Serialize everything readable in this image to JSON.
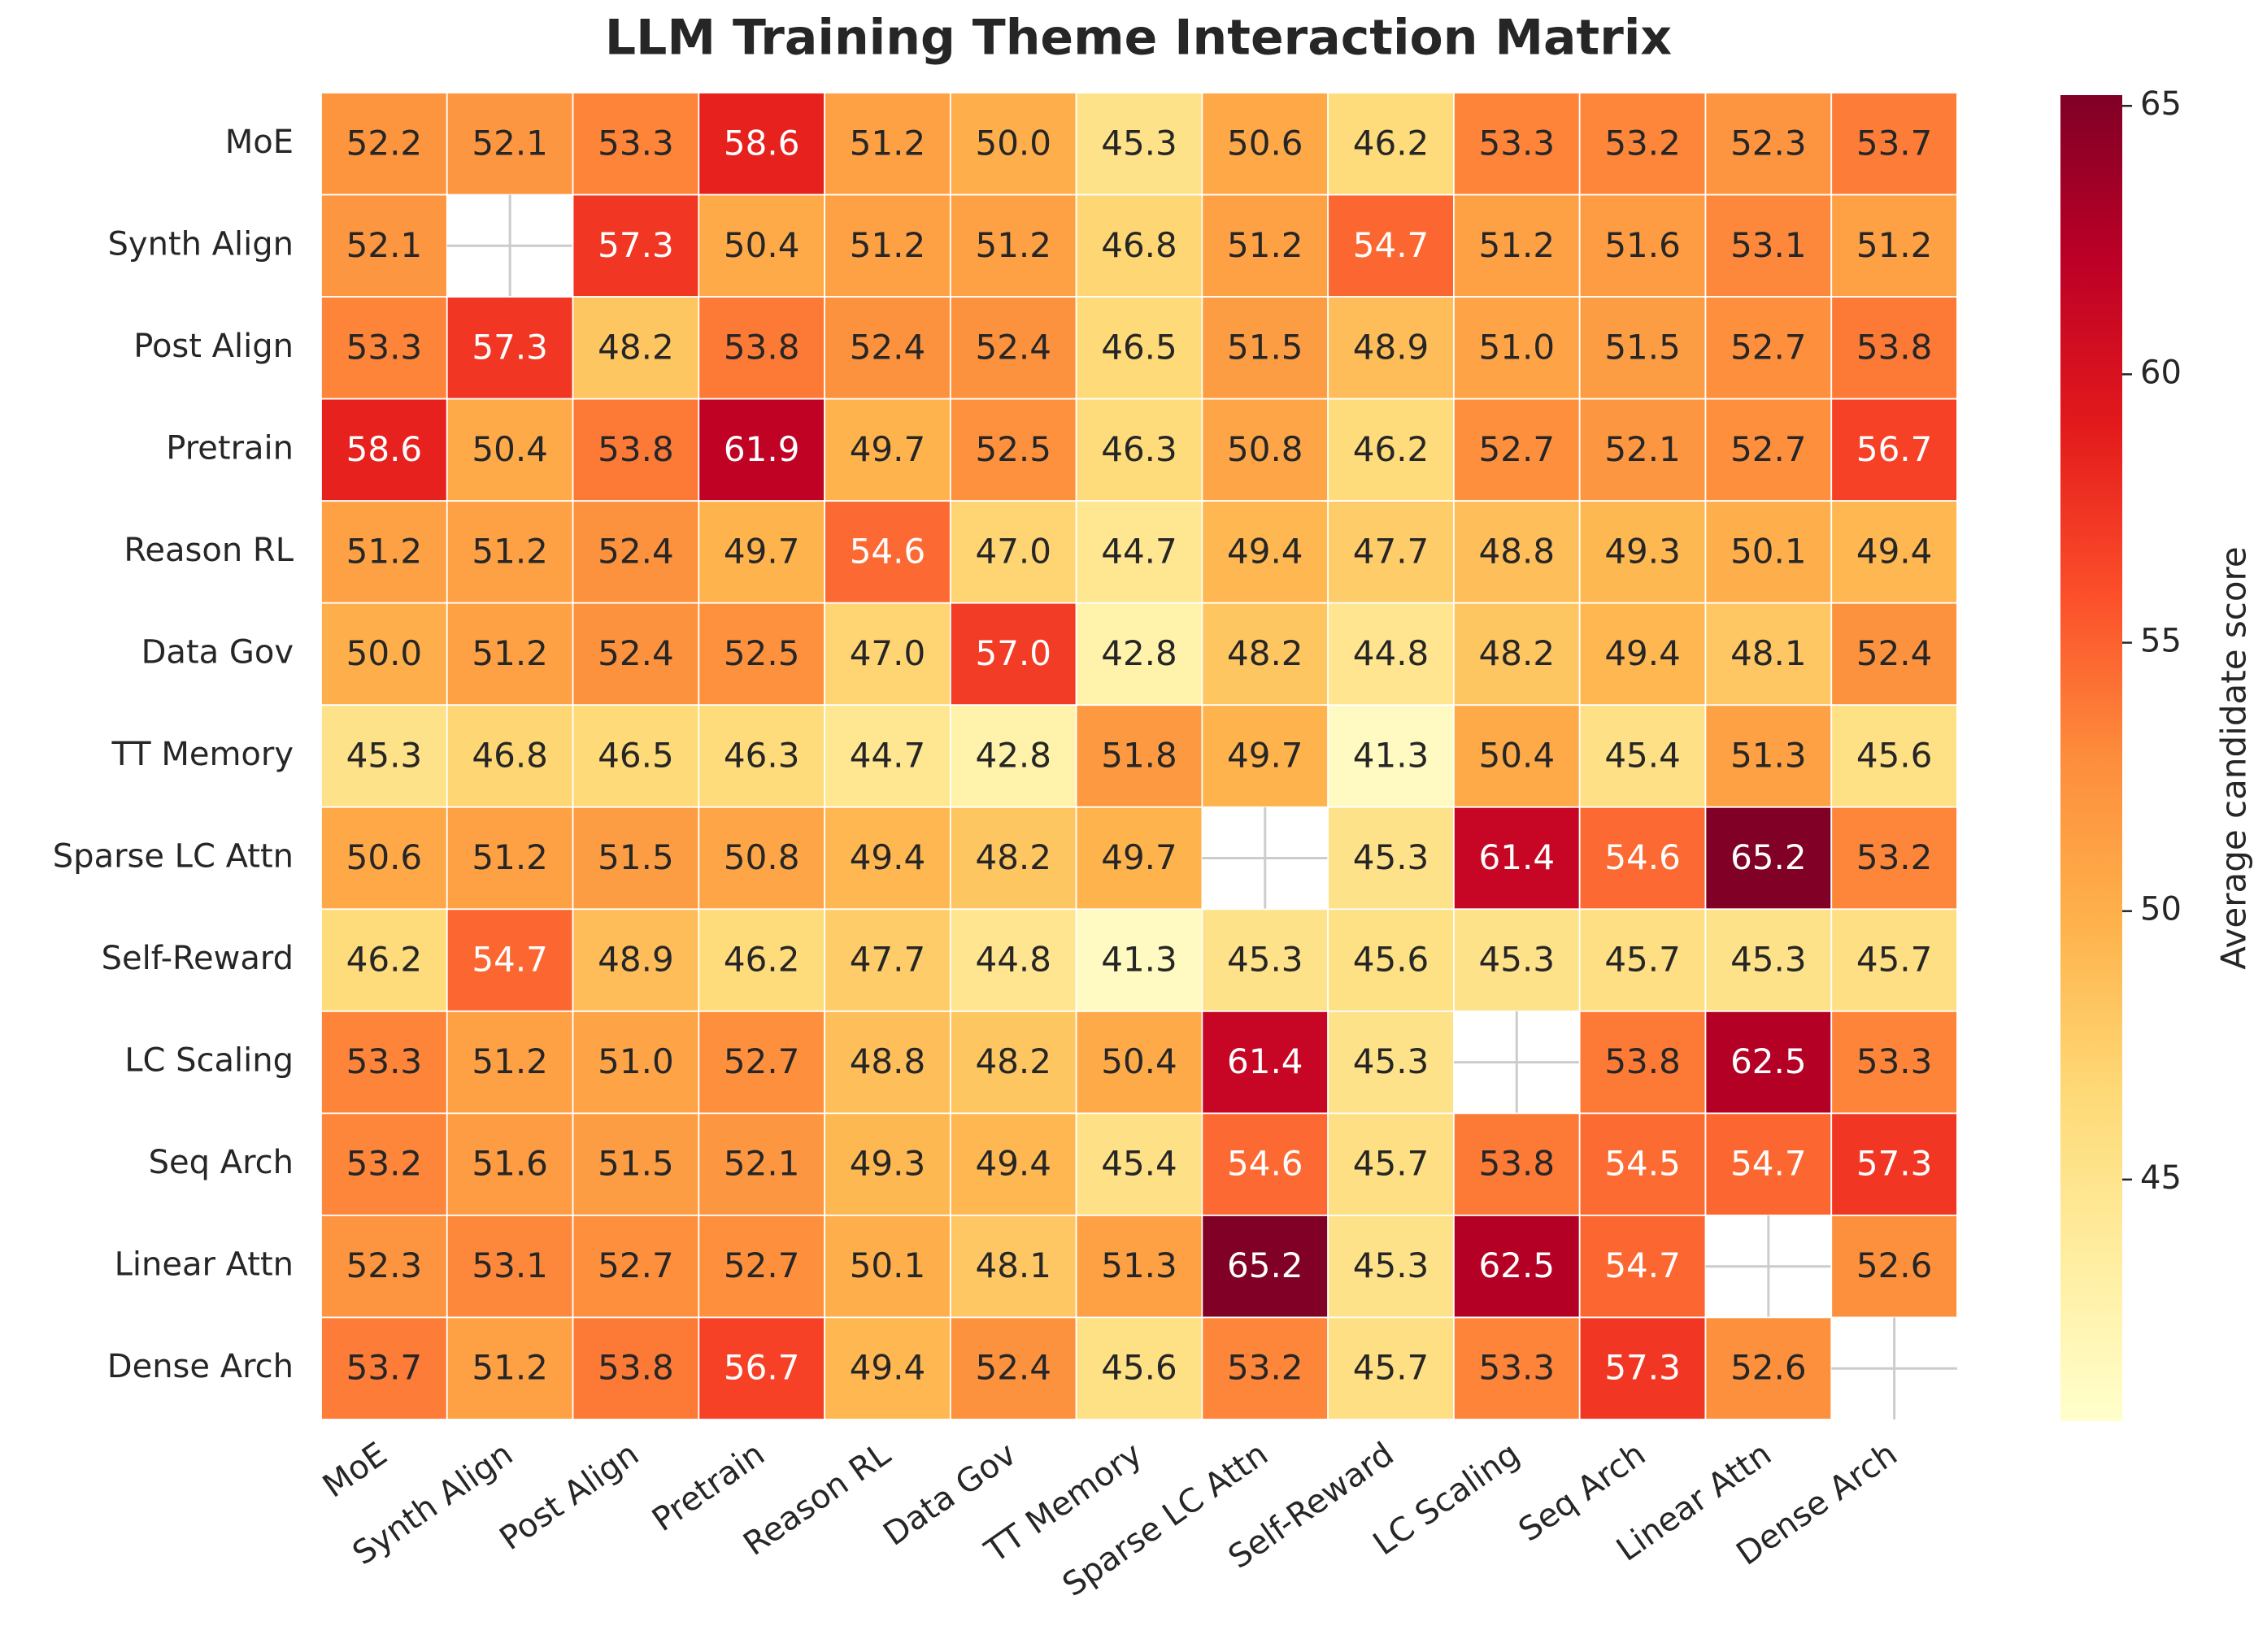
{
  "chart_data": {
    "type": "heatmap",
    "title": "LLM Training Theme Interaction Matrix",
    "x": [
      "MoE",
      "Synth Align",
      "Post Align",
      "Pretrain",
      "Reason RL",
      "Data Gov",
      "TT Memory",
      "Sparse LC Attn",
      "Self-Reward",
      "LC Scaling",
      "Seq Arch",
      "Linear Attn",
      "Dense Arch"
    ],
    "y": [
      "MoE",
      "Synth Align",
      "Post Align",
      "Pretrain",
      "Reason RL",
      "Data Gov",
      "TT Memory",
      "Sparse LC Attn",
      "Self-Reward",
      "LC Scaling",
      "Seq Arch",
      "Linear Attn",
      "Dense Arch"
    ],
    "values": [
      [
        52.2,
        52.1,
        53.3,
        58.6,
        51.2,
        50.0,
        45.3,
        50.6,
        46.2,
        53.3,
        53.2,
        52.3,
        53.7
      ],
      [
        52.1,
        null,
        57.3,
        50.4,
        51.2,
        51.2,
        46.8,
        51.2,
        54.7,
        51.2,
        51.6,
        53.1,
        51.2
      ],
      [
        53.3,
        57.3,
        48.2,
        53.8,
        52.4,
        52.4,
        46.5,
        51.5,
        48.9,
        51.0,
        51.5,
        52.7,
        53.8
      ],
      [
        58.6,
        50.4,
        53.8,
        61.9,
        49.7,
        52.5,
        46.3,
        50.8,
        46.2,
        52.7,
        52.1,
        52.7,
        56.7
      ],
      [
        51.2,
        51.2,
        52.4,
        49.7,
        54.6,
        47.0,
        44.7,
        49.4,
        47.7,
        48.8,
        49.3,
        50.1,
        49.4
      ],
      [
        50.0,
        51.2,
        52.4,
        52.5,
        47.0,
        57.0,
        42.8,
        48.2,
        44.8,
        48.2,
        49.4,
        48.1,
        52.4
      ],
      [
        45.3,
        46.8,
        46.5,
        46.3,
        44.7,
        42.8,
        51.8,
        49.7,
        41.3,
        50.4,
        45.4,
        51.3,
        45.6
      ],
      [
        50.6,
        51.2,
        51.5,
        50.8,
        49.4,
        48.2,
        49.7,
        null,
        45.3,
        61.4,
        54.6,
        65.2,
        53.2
      ],
      [
        46.2,
        54.7,
        48.9,
        46.2,
        47.7,
        44.8,
        41.3,
        45.3,
        45.6,
        45.3,
        45.7,
        45.3,
        45.7
      ],
      [
        53.3,
        51.2,
        51.0,
        52.7,
        48.8,
        48.2,
        50.4,
        61.4,
        45.3,
        null,
        53.8,
        62.5,
        53.3
      ],
      [
        53.2,
        51.6,
        51.5,
        52.1,
        49.3,
        49.4,
        45.4,
        54.6,
        45.7,
        53.8,
        54.5,
        54.7,
        57.3
      ],
      [
        52.3,
        53.1,
        52.7,
        52.7,
        50.1,
        48.1,
        51.3,
        65.2,
        45.3,
        62.5,
        54.7,
        null,
        52.6
      ],
      [
        53.7,
        51.2,
        53.8,
        56.7,
        49.4,
        52.4,
        45.6,
        53.2,
        45.7,
        53.3,
        57.3,
        52.6,
        null
      ]
    ],
    "value_labels": [
      [
        "52.2",
        "52.1",
        "53.3",
        "58.6",
        "51.2",
        "50.0",
        "45.3",
        "50.6",
        "46.2",
        "53.3",
        "53.2",
        "52.3",
        "53.7"
      ],
      [
        "52.1",
        null,
        "57.3",
        "50.4",
        "51.2",
        "51.2",
        "46.8",
        "51.2",
        "54.7",
        "51.2",
        "51.6",
        "53.1",
        "51.2"
      ],
      [
        "53.3",
        "57.3",
        "48.2",
        "53.8",
        "52.4",
        "52.4",
        "46.5",
        "51.5",
        "48.9",
        "51.0",
        "51.5",
        "52.7",
        "53.8"
      ],
      [
        "58.6",
        "50.4",
        "53.8",
        "61.9",
        "49.7",
        "52.5",
        "46.3",
        "50.8",
        "46.2",
        "52.7",
        "52.1",
        "52.7",
        "56.7"
      ],
      [
        "51.2",
        "51.2",
        "52.4",
        "49.7",
        "54.6",
        "47.0",
        "44.7",
        "49.4",
        "47.7",
        "48.8",
        "49.3",
        "50.1",
        "49.4"
      ],
      [
        "50.0",
        "51.2",
        "52.4",
        "52.5",
        "47.0",
        "57.0",
        "42.8",
        "48.2",
        "44.8",
        "48.2",
        "49.4",
        "48.1",
        "52.4"
      ],
      [
        "45.3",
        "46.8",
        "46.5",
        "46.3",
        "44.7",
        "42.8",
        "51.8",
        "49.7",
        "41.3",
        "50.4",
        "45.4",
        "51.3",
        "45.6"
      ],
      [
        "50.6",
        "51.2",
        "51.5",
        "50.8",
        "49.4",
        "48.2",
        "49.7",
        null,
        "45.3",
        "61.4",
        "54.6",
        "65.2",
        "53.2"
      ],
      [
        "46.2",
        "54.7",
        "48.9",
        "46.2",
        "47.7",
        "44.8",
        "41.3",
        "45.3",
        "45.6",
        "45.3",
        "45.7",
        "45.3",
        "45.7"
      ],
      [
        "53.3",
        "51.2",
        "51.0",
        "52.7",
        "48.8",
        "48.2",
        "50.4",
        "61.4",
        "45.3",
        null,
        "53.8",
        "62.5",
        "53.3"
      ],
      [
        "53.2",
        "51.6",
        "51.5",
        "52.1",
        "49.3",
        "49.4",
        "45.4",
        "54.6",
        "45.7",
        "53.8",
        "54.5",
        "54.7",
        "57.3"
      ],
      [
        "52.3",
        "53.1",
        "52.7",
        "52.7",
        "50.1",
        "48.1",
        "51.3",
        "65.2",
        "45.3",
        "62.5",
        "54.7",
        null,
        "52.6"
      ],
      [
        "53.7",
        "51.2",
        "53.8",
        "56.7",
        "49.4",
        "52.4",
        "45.6",
        "53.2",
        "45.7",
        "53.3",
        "57.3",
        "52.6",
        null
      ]
    ],
    "colormap": "YlOrRd",
    "clim": [
      40.5,
      65.2
    ],
    "colorbar_ticks": [
      45,
      50,
      55,
      60,
      65
    ],
    "colorbar_label": "Average candidate score"
  }
}
